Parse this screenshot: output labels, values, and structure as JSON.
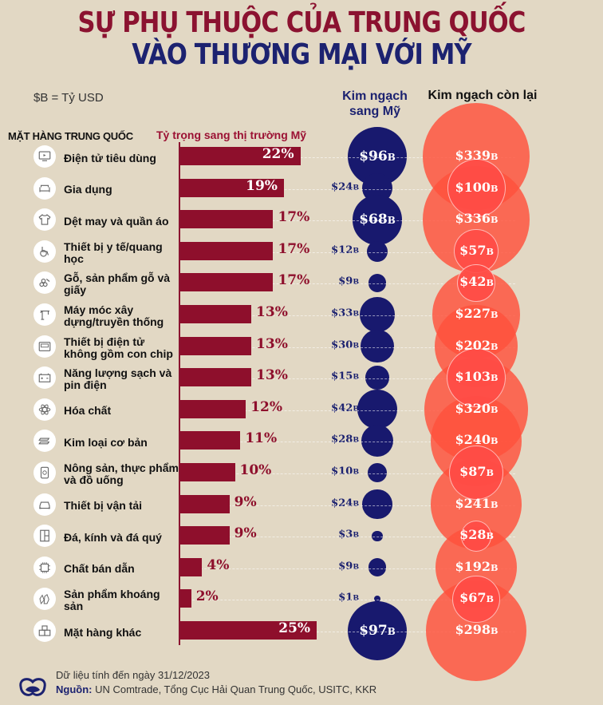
{
  "header": {
    "title_line1": "SỰ PHỤ THUỘC CỦA TRUNG QUỐC",
    "title_line2": "VÀO THƯƠNG MẠI VỚI MỸ",
    "unit_note": "$B = Tỷ USD",
    "col_items": "MẶT HÀNG TRUNG QUỐC",
    "col_share": "Tỷ trọng sang thị trường Mỹ",
    "col_us": "Kim ngạch sang Mỹ",
    "col_rest": "Kim ngạch còn lại"
  },
  "colors": {
    "background": "#e2d8c4",
    "bar": "#8e0f2c",
    "title_red": "#8b1230",
    "title_navy": "#1c2270",
    "us_bubble": "#18196e",
    "rest_bubble": "#ff503c"
  },
  "rows": [
    {
      "label": "Điện tử tiêu dùng",
      "icon": "tv-icon",
      "pct": "22%",
      "us": "$96",
      "rest": "$339"
    },
    {
      "label": "Gia dụng",
      "icon": "sofa-icon",
      "pct": "19%",
      "us": "$24",
      "rest": "$100"
    },
    {
      "label": "Dệt may và quần áo",
      "icon": "shirt-icon",
      "pct": "17%",
      "us": "$68",
      "rest": "$336"
    },
    {
      "label": "Thiết bị y tế/quang học",
      "icon": "wheelchair-icon",
      "pct": "17%",
      "us": "$12",
      "rest": "$57"
    },
    {
      "label": "Gỗ, sản phẩm gỗ và giấy",
      "icon": "logs-icon",
      "pct": "17%",
      "us": "$9",
      "rest": "$42"
    },
    {
      "label": "Máy móc xây dựng/truyền thống",
      "icon": "crane-icon",
      "pct": "13%",
      "us": "$33",
      "rest": "$227"
    },
    {
      "label": "Thiết bị điện tử không gồm con chip",
      "icon": "device-icon",
      "pct": "13%",
      "us": "$30",
      "rest": "$202"
    },
    {
      "label": "Năng lượng sạch và pin điện",
      "icon": "battery-icon",
      "pct": "13%",
      "us": "$15",
      "rest": "$103"
    },
    {
      "label": "Hóa chất",
      "icon": "atom-icon",
      "pct": "12%",
      "us": "$42",
      "rest": "$320"
    },
    {
      "label": "Kim loại cơ bản",
      "icon": "metal-bars-icon",
      "pct": "11%",
      "us": "$28",
      "rest": "$240"
    },
    {
      "label": "Nông sản, thực phẩm và đồ uống",
      "icon": "food-can-icon",
      "pct": "10%",
      "us": "$10",
      "rest": "$87"
    },
    {
      "label": "Thiết bị vận tải",
      "icon": "car-icon",
      "pct": "9%",
      "us": "$24",
      "rest": "$241"
    },
    {
      "label": "Đá, kính và đá quý",
      "icon": "window-icon",
      "pct": "9%",
      "us": "$3",
      "rest": "$28"
    },
    {
      "label": "Chất bán dẫn",
      "icon": "chip-icon",
      "pct": "4%",
      "us": "$9",
      "rest": "$192"
    },
    {
      "label": "Sản phẩm khoáng sản",
      "icon": "crystal-icon",
      "pct": "2%",
      "us": "$1",
      "rest": "$67"
    },
    {
      "label": "Mặt hàng khác",
      "icon": "boxes-icon",
      "pct": "25%",
      "us": "$97",
      "rest": "$298"
    }
  ],
  "unit_suffix": "B",
  "footer": {
    "date_note": "Dữ liệu tính đến ngày 31/12/2023",
    "source_label": "Nguồn:",
    "source_text": " UN Comtrade, Tổng Cục Hải Quan Trung Quốc, USITC, KKR"
  },
  "chart_data": {
    "type": "bar",
    "title": "SỰ PHỤ THUỘC CỦA TRUNG QUỐC VÀO THƯƠNG MẠI VỚI MỸ",
    "subtitle": "$B = Tỷ USD",
    "xlabel": "Tỷ trọng sang thị trường Mỹ",
    "ylabel": "MẶT HÀNG TRUNG QUỐC",
    "orientation": "horizontal",
    "grid": true,
    "categories": [
      "Điện tử tiêu dùng",
      "Gia dụng",
      "Dệt may và quần áo",
      "Thiết bị y tế/quang học",
      "Gỗ, sản phẩm gỗ và giấy",
      "Máy móc xây dựng/truyền thống",
      "Thiết bị điện tử không gồm con chip",
      "Năng lượng sạch và pin điện",
      "Hóa chất",
      "Kim loại cơ bản",
      "Nông sản, thực phẩm và đồ uống",
      "Thiết bị vận tải",
      "Đá, kính và đá quý",
      "Chất bán dẫn",
      "Sản phẩm khoáng sản",
      "Mặt hàng khác"
    ],
    "series": [
      {
        "name": "Tỷ trọng sang thị trường Mỹ (%)",
        "values": [
          22,
          19,
          17,
          17,
          17,
          13,
          13,
          13,
          12,
          11,
          10,
          9,
          9,
          4,
          2,
          25
        ]
      },
      {
        "name": "Kim ngạch sang Mỹ ($B)",
        "type": "bubble",
        "values": [
          96,
          24,
          68,
          12,
          9,
          33,
          30,
          15,
          42,
          28,
          10,
          24,
          3,
          9,
          1,
          97
        ]
      },
      {
        "name": "Kim ngạch còn lại ($B)",
        "type": "bubble",
        "values": [
          339,
          100,
          336,
          57,
          42,
          227,
          202,
          103,
          320,
          240,
          87,
          241,
          28,
          192,
          67,
          298
        ]
      }
    ],
    "footnote": "Dữ liệu tính đến ngày 31/12/2023",
    "source": "UN Comtrade, Tổng Cục Hải Quan Trung Quốc, USITC, KKR"
  }
}
